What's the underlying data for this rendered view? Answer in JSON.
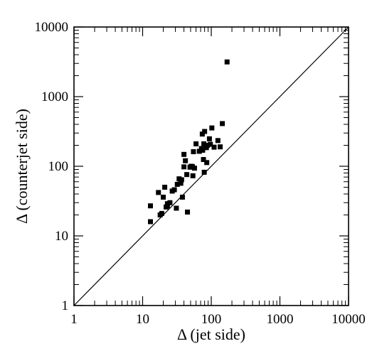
{
  "chart_data": {
    "type": "scatter",
    "xlabel": "Δ (jet side)",
    "ylabel": "Δ (counterjet side)",
    "xscale": "log",
    "yscale": "log",
    "xlim": [
      1,
      10000
    ],
    "ylim": [
      1,
      10000
    ],
    "xticks": [
      "1",
      "10",
      "100",
      "1000",
      "10000"
    ],
    "yticks": [
      "1",
      "10",
      "100",
      "1000",
      "10000"
    ],
    "reference_line": "y = x",
    "grid": false,
    "marker": "filled-square",
    "color": "#000000",
    "points": [
      [
        13,
        27
      ],
      [
        13,
        16
      ],
      [
        17,
        42
      ],
      [
        18,
        20
      ],
      [
        19,
        21
      ],
      [
        20,
        36
      ],
      [
        21,
        50
      ],
      [
        22,
        26
      ],
      [
        23,
        27
      ],
      [
        23,
        29
      ],
      [
        25,
        30
      ],
      [
        27,
        44
      ],
      [
        29,
        46
      ],
      [
        31,
        25
      ],
      [
        32,
        55
      ],
      [
        34,
        66
      ],
      [
        36,
        57
      ],
      [
        37,
        64
      ],
      [
        38,
        36
      ],
      [
        40,
        98
      ],
      [
        40,
        148
      ],
      [
        42,
        120
      ],
      [
        44,
        76
      ],
      [
        45,
        22
      ],
      [
        49,
        97
      ],
      [
        51,
        100
      ],
      [
        53,
        99
      ],
      [
        54,
        73
      ],
      [
        57,
        94
      ],
      [
        55,
        162
      ],
      [
        60,
        210
      ],
      [
        67,
        164
      ],
      [
        72,
        180
      ],
      [
        74,
        290
      ],
      [
        75,
        170
      ],
      [
        77,
        125
      ],
      [
        78,
        210
      ],
      [
        79,
        82
      ],
      [
        80,
        316
      ],
      [
        85,
        185
      ],
      [
        86,
        113
      ],
      [
        88,
        200
      ],
      [
        94,
        248
      ],
      [
        97,
        207
      ],
      [
        102,
        355
      ],
      [
        110,
        188
      ],
      [
        125,
        234
      ],
      [
        135,
        190
      ],
      [
        145,
        410
      ],
      [
        170,
        3150
      ]
    ]
  }
}
